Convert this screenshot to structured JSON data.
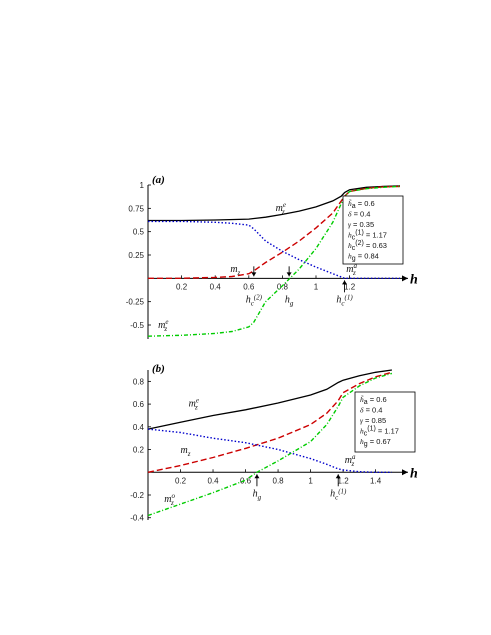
{
  "colors": {
    "m_e": "#000000",
    "m_z": "#cc0000",
    "m_a": "#0000cc",
    "m_o": "#00cc00",
    "axis": "#000000"
  },
  "chart_data": [
    {
      "type": "line",
      "panel_label": "(a)",
      "axis_variable": "h",
      "xlim": [
        0,
        1.5
      ],
      "ylim": [
        -0.65,
        1.0
      ],
      "x_ticks": [
        0.2,
        0.4,
        0.6,
        0.8,
        1.0,
        1.2
      ],
      "x_tick_labels": [
        "0.2",
        "0.4",
        "0.6",
        "0.8",
        "1",
        "1.2"
      ],
      "y_ticks": [
        1,
        0.75,
        0.5,
        0.25,
        -0.25,
        -0.5
      ],
      "y_tick_labels": [
        "1",
        "0.75",
        "0.5",
        "0.25",
        "-0.25",
        "-0.5"
      ],
      "series": [
        {
          "key": "m_e",
          "style": "solid",
          "x": [
            0,
            0.2,
            0.4,
            0.6,
            0.7,
            0.8,
            0.9,
            1.0,
            1.1,
            1.15,
            1.17,
            1.2,
            1.3,
            1.4,
            1.5
          ],
          "y": [
            0.62,
            0.62,
            0.625,
            0.635,
            0.655,
            0.685,
            0.72,
            0.765,
            0.83,
            0.88,
            0.92,
            0.95,
            0.975,
            0.985,
            0.99
          ]
        },
        {
          "key": "m_z",
          "style": "dashed",
          "x": [
            0,
            0.2,
            0.4,
            0.5,
            0.6,
            0.63,
            0.7,
            0.8,
            0.9,
            1.0,
            1.1,
            1.17,
            1.2,
            1.3,
            1.4,
            1.5
          ],
          "y": [
            0.0,
            0.0,
            0.01,
            0.02,
            0.05,
            0.08,
            0.17,
            0.28,
            0.4,
            0.54,
            0.7,
            0.88,
            0.93,
            0.965,
            0.98,
            0.985
          ]
        },
        {
          "key": "m_a",
          "style": "dotted",
          "x": [
            0,
            0.2,
            0.4,
            0.5,
            0.6,
            0.63,
            0.7,
            0.8,
            0.9,
            1.0,
            1.1,
            1.17,
            1.2,
            1.3,
            1.4,
            1.5
          ],
          "y": [
            0.61,
            0.61,
            0.6,
            0.59,
            0.57,
            0.53,
            0.4,
            0.29,
            0.2,
            0.12,
            0.05,
            0.0,
            0.0,
            0.0,
            0.0,
            0.0
          ]
        },
        {
          "key": "m_o",
          "style": "dashdot",
          "x": [
            0,
            0.2,
            0.4,
            0.5,
            0.6,
            0.63,
            0.7,
            0.8,
            0.9,
            1.0,
            1.1,
            1.17,
            1.2,
            1.3,
            1.4,
            1.5
          ],
          "y": [
            -0.62,
            -0.61,
            -0.59,
            -0.57,
            -0.52,
            -0.47,
            -0.25,
            -0.08,
            0.1,
            0.32,
            0.6,
            0.88,
            0.93,
            0.96,
            0.975,
            0.985
          ]
        }
      ],
      "curve_labels": [
        {
          "key": "m_e",
          "text": "m",
          "sub": "z",
          "sup": "e",
          "at": [
            0.76,
            0.72
          ]
        },
        {
          "key": "m_z",
          "text": "m",
          "sub": "z",
          "sup": "",
          "at": [
            0.49,
            0.07
          ]
        },
        {
          "key": "m_a",
          "text": "m",
          "sub": "z",
          "sup": "a",
          "at": [
            1.18,
            0.07
          ]
        },
        {
          "key": "m_o",
          "text": "m",
          "sub": "z",
          "sup": "e",
          "at": [
            0.06,
            -0.53
          ]
        }
      ],
      "markers": [
        {
          "x": 0.63,
          "label": "h",
          "sub": "c",
          "sup": "(2)",
          "direction": "down"
        },
        {
          "x": 0.84,
          "label": "h",
          "sub": "g",
          "sup": "",
          "direction": "down"
        },
        {
          "x": 1.17,
          "label": "h",
          "sub": "c",
          "sup": "(1)",
          "direction": "up"
        }
      ],
      "params": [
        {
          "sym": "h",
          "mod": "̃",
          "sub": "a",
          "eq": " = 0.6"
        },
        {
          "sym": "δ",
          "mod": "",
          "sub": "",
          "eq": " = 0.4"
        },
        {
          "sym": "γ",
          "mod": "",
          "sub": "",
          "eq": " = 0.35"
        },
        {
          "sym": "h",
          "mod": "",
          "sub": "c",
          "sup": "(1)",
          "eq": " = 1.17"
        },
        {
          "sym": "h",
          "mod": "",
          "sub": "c",
          "sup": "(2)",
          "eq": " = 0.63"
        },
        {
          "sym": "h",
          "mod": "",
          "sub": "g",
          "eq": " = 0.84"
        }
      ]
    },
    {
      "type": "line",
      "panel_label": "(b)",
      "axis_variable": "h",
      "xlim": [
        0,
        1.55
      ],
      "ylim": [
        -0.42,
        0.9
      ],
      "x_ticks": [
        0.2,
        0.4,
        0.6,
        0.8,
        1.0,
        1.2,
        1.4
      ],
      "x_tick_labels": [
        "0.2",
        "0.4",
        "0.6",
        "0.8",
        "1",
        "1.2",
        "1.4"
      ],
      "y_ticks": [
        0.8,
        0.6,
        0.4,
        0.2,
        -0.2,
        -0.4
      ],
      "y_tick_labels": [
        "0.8",
        "0.6",
        "0.4",
        "0.2",
        "-0.2",
        "-0.4"
      ],
      "series": [
        {
          "key": "m_e",
          "style": "solid",
          "x": [
            0,
            0.2,
            0.4,
            0.6,
            0.8,
            1.0,
            1.1,
            1.17,
            1.2,
            1.3,
            1.4,
            1.5
          ],
          "y": [
            0.38,
            0.44,
            0.5,
            0.55,
            0.61,
            0.68,
            0.73,
            0.79,
            0.81,
            0.85,
            0.88,
            0.9
          ]
        },
        {
          "key": "m_z",
          "style": "dashed",
          "x": [
            0,
            0.2,
            0.4,
            0.6,
            0.8,
            1.0,
            1.1,
            1.17,
            1.2,
            1.3,
            1.4,
            1.5
          ],
          "y": [
            0.0,
            0.06,
            0.13,
            0.21,
            0.3,
            0.42,
            0.52,
            0.63,
            0.7,
            0.78,
            0.84,
            0.88
          ]
        },
        {
          "key": "m_a",
          "style": "dotted",
          "x": [
            0,
            0.2,
            0.4,
            0.6,
            0.8,
            1.0,
            1.1,
            1.17,
            1.2,
            1.3,
            1.4,
            1.5
          ],
          "y": [
            0.38,
            0.35,
            0.3,
            0.26,
            0.2,
            0.12,
            0.07,
            0.03,
            0.02,
            0.005,
            0.0,
            0.0
          ]
        },
        {
          "key": "m_o",
          "style": "dashdot",
          "x": [
            0,
            0.2,
            0.4,
            0.6,
            0.67,
            0.8,
            1.0,
            1.1,
            1.17,
            1.2,
            1.3,
            1.4,
            1.5
          ],
          "y": [
            -0.38,
            -0.28,
            -0.18,
            -0.07,
            0.0,
            0.1,
            0.27,
            0.42,
            0.58,
            0.66,
            0.76,
            0.83,
            0.87
          ]
        }
      ],
      "curve_labels": [
        {
          "key": "m_e",
          "text": "m",
          "sub": "z",
          "sup": "e",
          "at": [
            0.25,
            0.58
          ]
        },
        {
          "key": "m_z",
          "text": "m",
          "sub": "z",
          "sup": "",
          "at": [
            0.2,
            0.17
          ]
        },
        {
          "key": "m_a",
          "text": "m",
          "sub": "z",
          "sup": "a",
          "at": [
            1.21,
            0.08
          ]
        },
        {
          "key": "m_o",
          "text": "m",
          "sub": "z",
          "sup": "o",
          "at": [
            0.1,
            -0.26
          ]
        }
      ],
      "markers": [
        {
          "x": 0.67,
          "label": "h",
          "sub": "g",
          "sup": "",
          "direction": "up"
        },
        {
          "x": 1.17,
          "label": "h",
          "sub": "c",
          "sup": "(1)",
          "direction": "up"
        }
      ],
      "params": [
        {
          "sym": "h",
          "mod": "̃",
          "sub": "a",
          "eq": " = 0.6"
        },
        {
          "sym": "δ",
          "mod": "",
          "sub": "",
          "eq": " = 0.4"
        },
        {
          "sym": "γ",
          "mod": "",
          "sub": "",
          "eq": " = 0.85"
        },
        {
          "sym": "h",
          "mod": "",
          "sub": "c",
          "sup": "(1)",
          "eq": " = 1.17"
        },
        {
          "sym": "h",
          "mod": "",
          "sub": "g",
          "eq": " = 0.67"
        }
      ]
    }
  ]
}
